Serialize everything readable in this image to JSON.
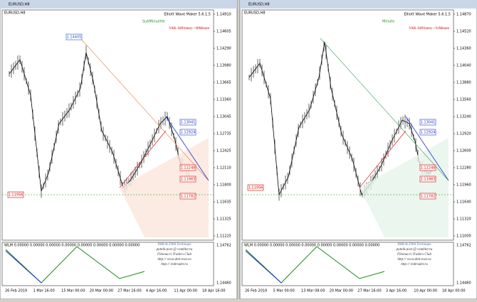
{
  "windows": [
    {
      "title": "EURUSD,H8",
      "chart_label": "EURUSD,H8",
      "indicator": "Elliott Wave Maker 5.6.1.5",
      "variant": "VAR. 04Primary / 00Minute",
      "degree_label": "SubMinuette",
      "price_ticks": [
        "1.14910",
        "1.14605",
        "1.14290",
        "1.13980",
        "1.13665",
        "1.13360",
        "1.13045",
        "1.12735",
        "1.12425",
        "1.12110",
        "1.11800",
        "1.11635",
        "1.11325",
        "1.11225"
      ],
      "price_boxes": [
        "1.14405",
        "1.13041",
        "1.12924",
        "1.12248",
        "1.11983",
        "1.11782",
        "1.11956"
      ],
      "indicator_header": "WLM 0.00000 0.00000 0.00000 0.00000 0.00000 0.00000 0.00000 0.00000",
      "indicator_ticks": [
        "1.14762",
        "1.14460"
      ],
      "credits": [
        "DMI & EWA Technique",
        "putnik-post @ rambler.ru",
        "Fibonacci   Traders   Club",
        "http:// www.dmi-ewa.ru",
        "http:// redtrader.ru"
      ],
      "time_labels": [
        "26 Feb 2019",
        "1 Mar 16:00",
        "15 Mar 00:00",
        "20 Mar 00:00",
        "27 Mar 16:00",
        "4 Apr 16:00",
        "11 Apr 00:00",
        "18 Apr 16:00"
      ]
    },
    {
      "title": "EURUSD,H8",
      "chart_label": "EURUSD,H8",
      "indicator": "Elliott Wave Maker 5.6.1.5",
      "variant": "VAR. 04Primary / 01Minute",
      "degree_label": "Minute",
      "price_ticks": [
        "1.14870",
        "1.14520",
        "1.14360",
        "1.14040",
        "1.13880",
        "1.13560",
        "1.13240",
        "1.12920",
        "1.12600",
        "1.12280",
        "1.11960",
        "1.11640",
        "1.11320",
        "1.11000"
      ],
      "price_boxes": [
        "1.13041",
        "1.12924",
        "1.12248",
        "1.11983",
        "1.11782",
        "1.11956"
      ],
      "indicator_header": "WLM 0.00000 0.00000 0.00000 0.00000 0.00000 0.00000 0.00000 0.00000",
      "indicator_ticks": [
        "1.14762",
        "1.14460"
      ],
      "credits": [
        "DMI & EWA Technique",
        "putnik-post @ rambler.ru",
        "Fibonacci   Traders   Club",
        "http:// www.dmi-ewa.ru",
        "http:// redtrader.ru"
      ],
      "time_labels": [
        "26 Feb 2019",
        "5 Mar 00:00",
        "13 Mar 08:00",
        "20 Mar 00:00",
        "27 Mar 16:00",
        "3 Apr 16:00",
        "10 Apr 00:00",
        "18 Apr 00:00"
      ]
    }
  ]
}
